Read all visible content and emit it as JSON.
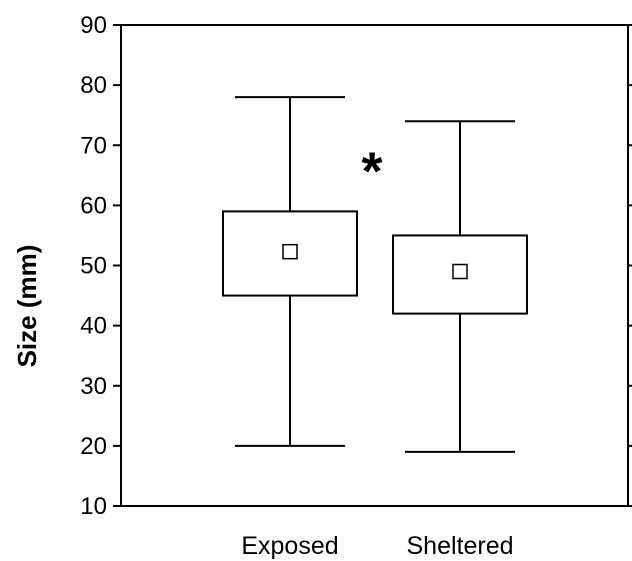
{
  "chart_data": {
    "type": "box",
    "title": "",
    "xlabel": "",
    "ylabel": "Size (mm)",
    "ylim": [
      10,
      90
    ],
    "yticks": [
      10,
      20,
      30,
      40,
      50,
      60,
      70,
      80,
      90
    ],
    "grid": false,
    "categories": [
      "Exposed",
      "Sheltered"
    ],
    "boxes": [
      {
        "category": "Exposed",
        "whisker_low": 20,
        "q1": 45,
        "mean": 52.3,
        "q3": 59,
        "whisker_high": 78
      },
      {
        "category": "Sheltered",
        "whisker_low": 19,
        "q1": 42,
        "mean": 49,
        "q3": 55,
        "whisker_high": 74
      }
    ],
    "annotations": [
      {
        "text": "*",
        "x_between": [
          "Exposed",
          "Sheltered"
        ],
        "y": 69
      }
    ]
  }
}
